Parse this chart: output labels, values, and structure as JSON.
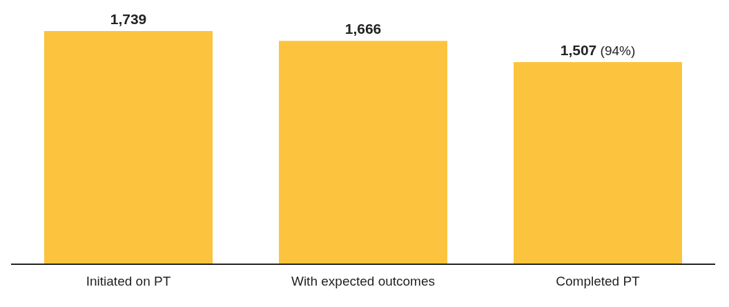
{
  "chart_data": {
    "type": "bar",
    "categories": [
      "Initiated on PT",
      "With expected outcomes",
      "Completed PT"
    ],
    "values": [
      1739,
      1666,
      1507
    ],
    "value_labels": [
      "1,739",
      "1,666",
      "1,507 (94%)"
    ],
    "color": "#fcc43e",
    "tick_labels": "x"
  }
}
